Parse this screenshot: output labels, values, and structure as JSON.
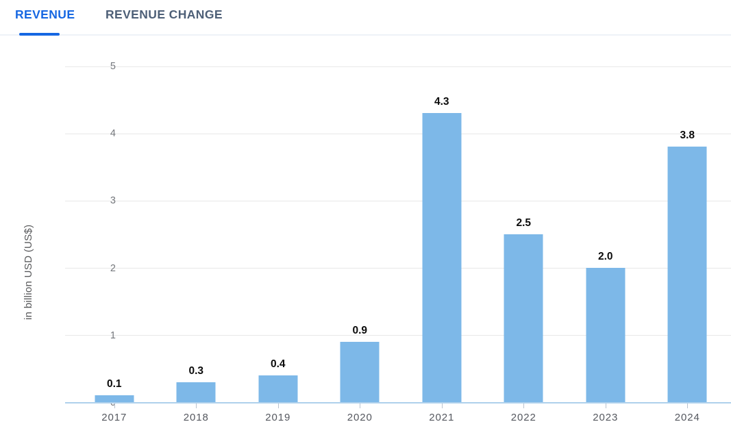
{
  "tabs": [
    {
      "label": "REVENUE",
      "active": true
    },
    {
      "label": "REVENUE CHANGE",
      "active": false
    }
  ],
  "colors": {
    "accent_blue": "#1667e2",
    "inactive_tab": "#4d5f77",
    "tab_divider": "#eef2f8",
    "bar_blue": "#7db8e8",
    "gridline": "#e8e8e8",
    "axis_baseline": "#aed0ec"
  },
  "chart_data": {
    "type": "bar",
    "title": "",
    "xlabel": "",
    "ylabel": "in billion USD (US$)",
    "categories": [
      "2017",
      "2018",
      "2019",
      "2020",
      "2021",
      "2022",
      "2023",
      "2024"
    ],
    "values": [
      0.1,
      0.3,
      0.4,
      0.9,
      4.3,
      2.5,
      2.0,
      3.8
    ],
    "bar_labels": [
      "0.1",
      "0.3",
      "0.4",
      "0.9",
      "4.3",
      "2.5",
      "2.0",
      "3.8"
    ],
    "ylim": [
      0,
      5
    ],
    "yticks": [
      0,
      1,
      2,
      3,
      4,
      5
    ],
    "grid": true,
    "legend": "none",
    "bar_color": "#7db8e8"
  }
}
